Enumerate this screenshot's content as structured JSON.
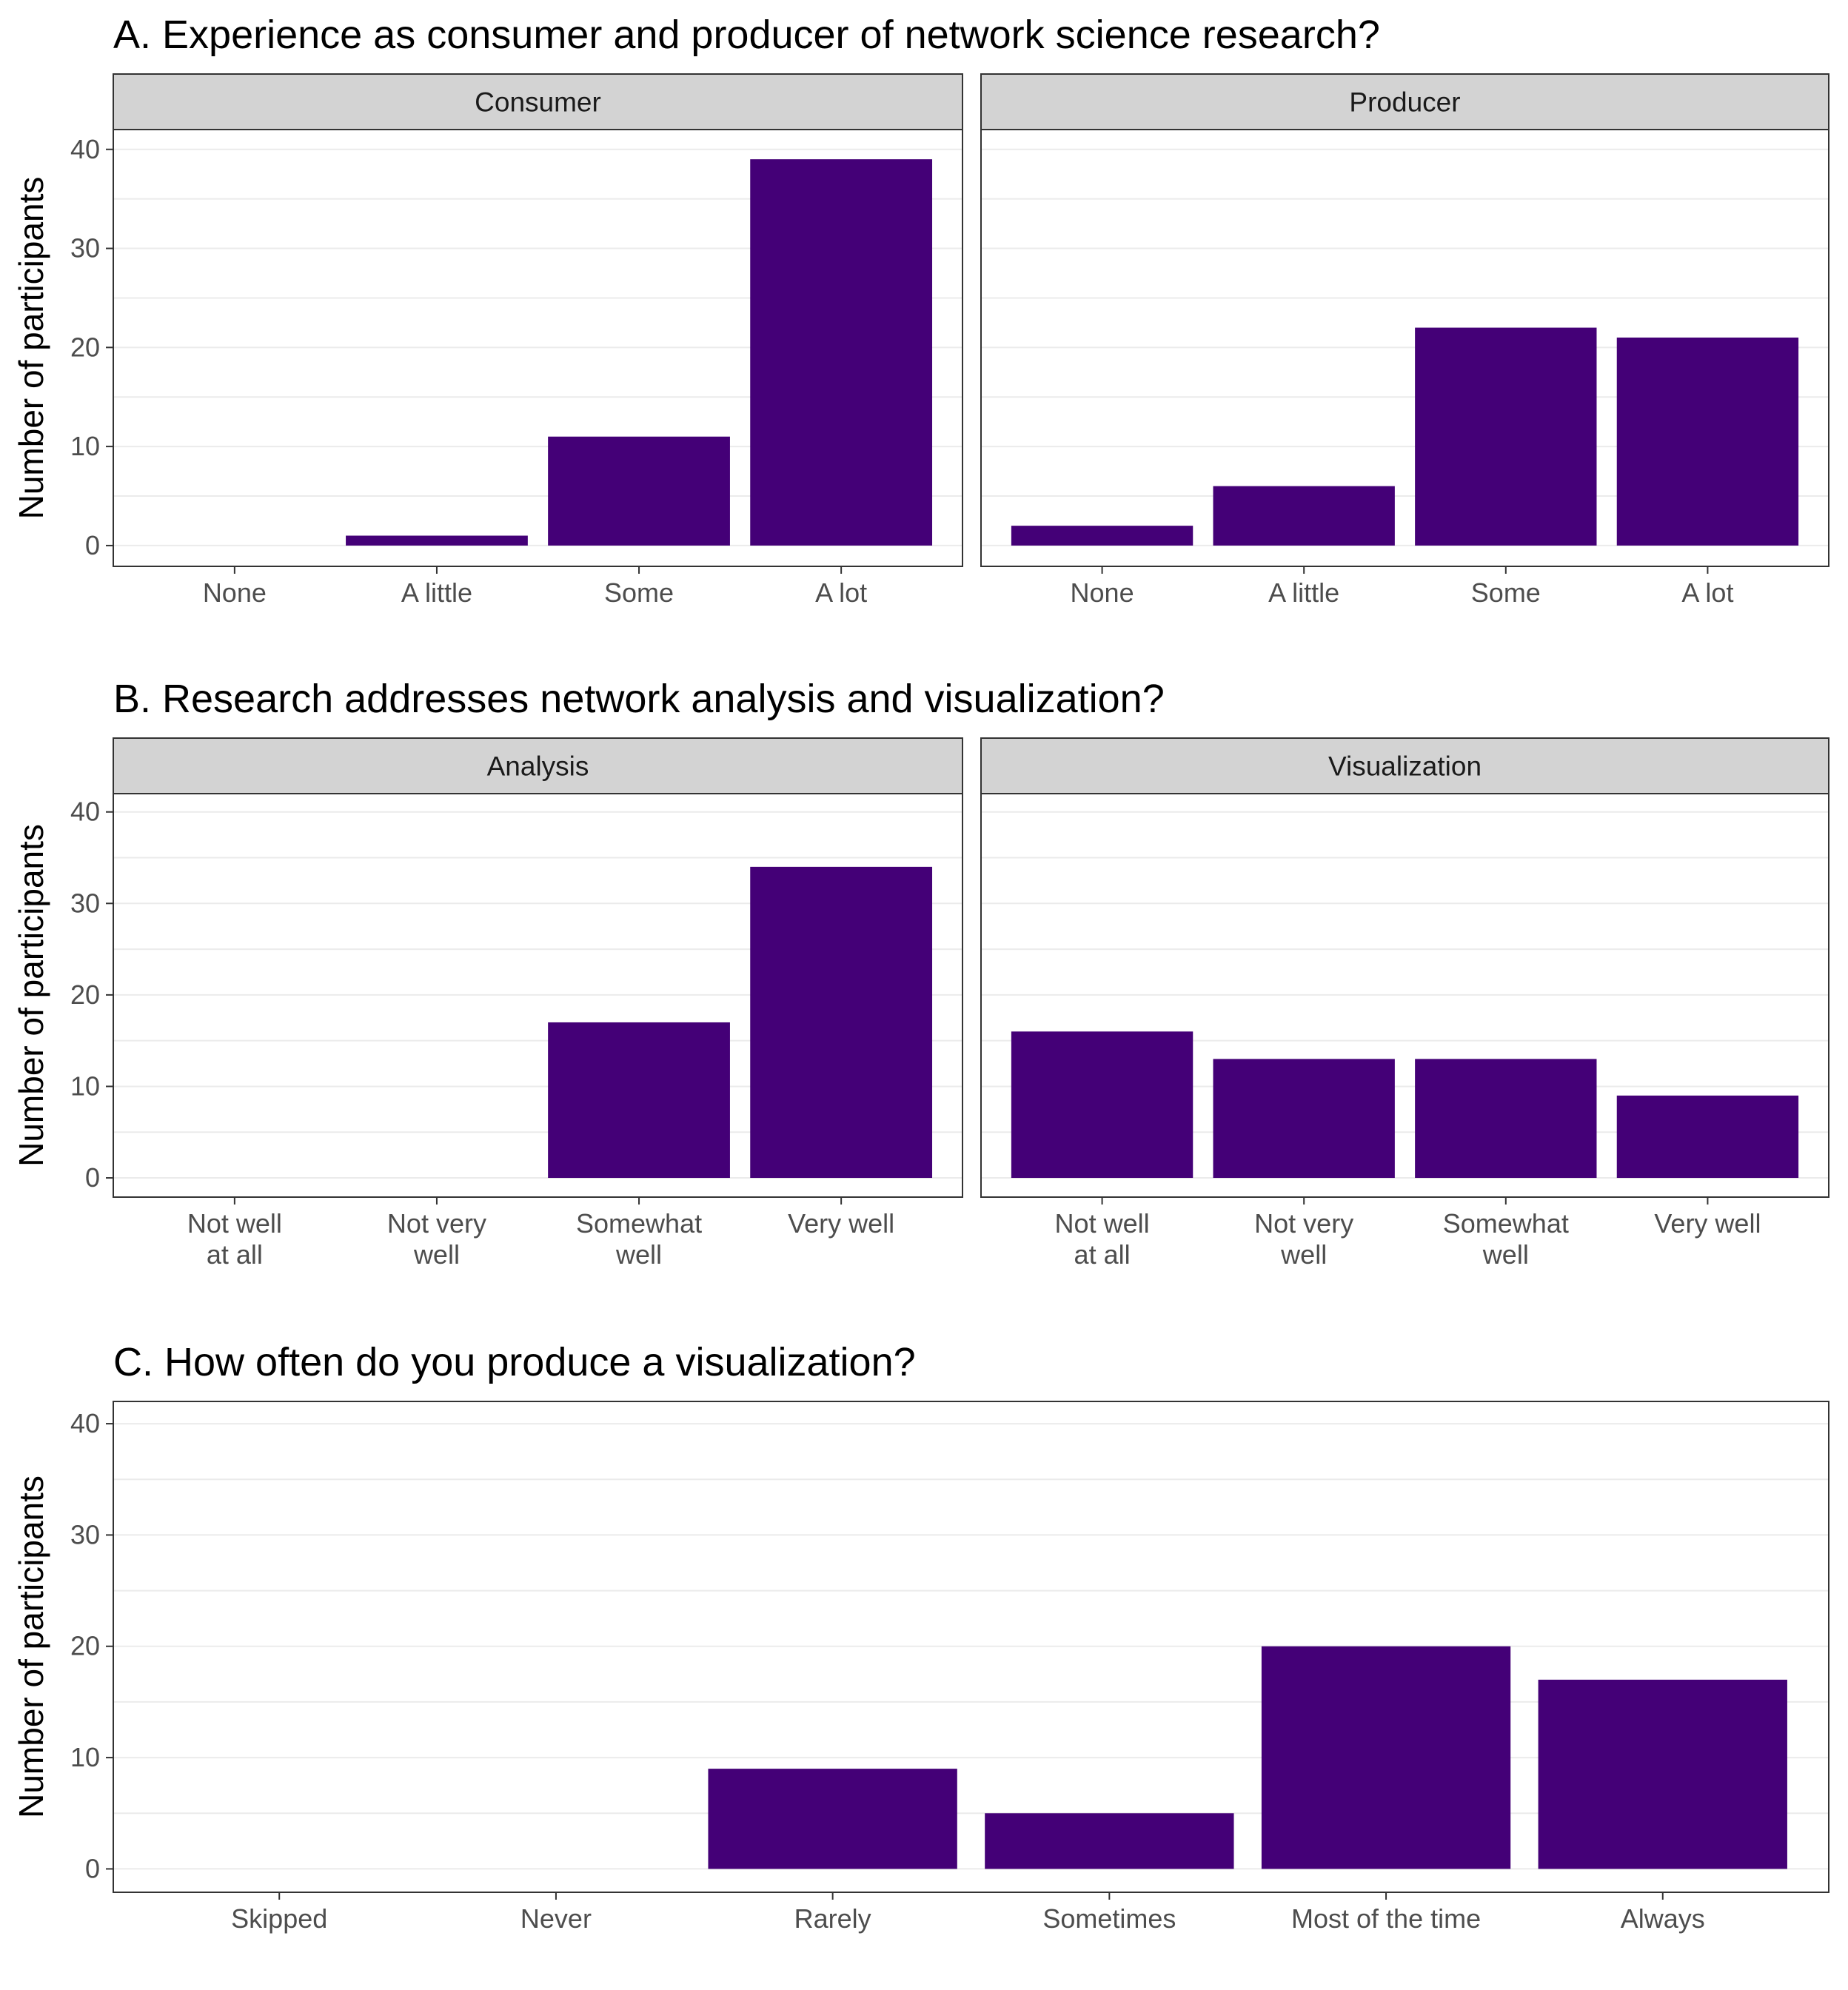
{
  "bar_color": "#440077",
  "ylabel": "Number of participants",
  "chart_data": [
    {
      "type": "bar",
      "title": "A. Experience as consumer and producer of network science research?",
      "ylabel": "Number of participants",
      "ylim": [
        0,
        42
      ],
      "yticks": [
        0,
        10,
        20,
        30,
        40
      ],
      "grid": true,
      "categories": [
        "None",
        "A little",
        "Some",
        "A lot"
      ],
      "facets": [
        {
          "name": "Consumer",
          "values": [
            0,
            1,
            11,
            39
          ]
        },
        {
          "name": "Producer",
          "values": [
            2,
            6,
            22,
            21
          ]
        }
      ]
    },
    {
      "type": "bar",
      "title": "B. Research addresses network analysis and visualization?",
      "ylabel": "Number of participants",
      "ylim": [
        0,
        42
      ],
      "yticks": [
        0,
        10,
        20,
        30,
        40
      ],
      "grid": true,
      "categories": [
        "Not well\nat all",
        "Not very\nwell",
        "Somewhat\nwell",
        "Very well"
      ],
      "facets": [
        {
          "name": "Analysis",
          "values": [
            0,
            0,
            17,
            34
          ]
        },
        {
          "name": "Visualization",
          "values": [
            16,
            13,
            13,
            9
          ]
        }
      ]
    },
    {
      "type": "bar",
      "title": "C. How often do you produce a visualization?",
      "ylabel": "Number of participants",
      "ylim": [
        0,
        42
      ],
      "yticks": [
        0,
        10,
        20,
        30,
        40
      ],
      "grid": true,
      "categories": [
        "Skipped",
        "Never",
        "Rarely",
        "Sometimes",
        "Most of the time",
        "Always"
      ],
      "facets": [
        {
          "name": "",
          "values": [
            0,
            0,
            9,
            5,
            20,
            17
          ]
        }
      ]
    }
  ]
}
